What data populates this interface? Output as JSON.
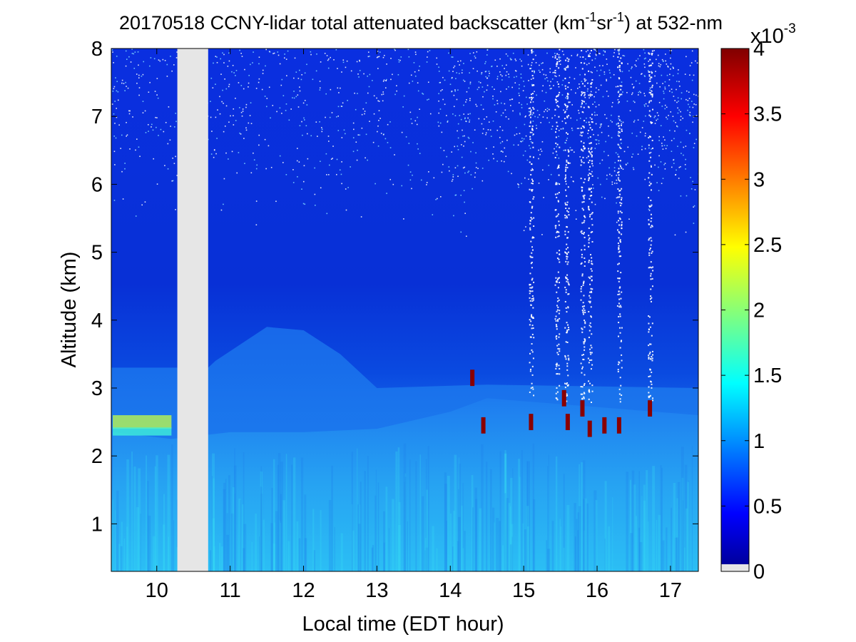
{
  "chart_data": {
    "type": "heatmap",
    "title": {
      "date": "20170518",
      "text_before_unit": "CCNY-lidar total attenuated backscatter (km",
      "sup1": "-1",
      "mid": "sr",
      "sup2": "-1",
      "text_after_unit": ") at 532-nm"
    },
    "xlabel": "Local time (EDT hour)",
    "ylabel": "Altitude (km)",
    "xlim": [
      9.38,
      17.38
    ],
    "ylim": [
      0.3,
      8.0
    ],
    "x_ticks": [
      10,
      11,
      12,
      13,
      14,
      15,
      16,
      17
    ],
    "y_ticks": [
      1,
      2,
      3,
      4,
      5,
      6,
      7,
      8
    ],
    "colorbar": {
      "colormap": "jet",
      "range": [
        0,
        4
      ],
      "ticks": [
        "0",
        "0.5",
        "1",
        "1.5",
        "2",
        "2.5",
        "3",
        "3.5",
        "4"
      ],
      "multiplier_base": "x10",
      "multiplier_exp": "-3",
      "no_data_color": "#e6e6e6"
    },
    "data_gap": {
      "start": 10.28,
      "end": 10.7,
      "color": "#e6e6e6"
    },
    "layers": [
      {
        "feature": "boundary layer top (rising)",
        "x": [
          9.4,
          10.2,
          11.0,
          12.0,
          13.0,
          14.0,
          14.5
        ],
        "altitude": [
          2.5,
          2.4,
          2.5,
          2.5,
          2.55,
          2.8,
          3.0
        ]
      },
      {
        "feature": "residual layer arc",
        "x": [
          10.8,
          11.5,
          12.0,
          12.5,
          13.0
        ],
        "altitude": [
          3.4,
          3.9,
          3.85,
          3.5,
          3.0
        ]
      },
      {
        "feature": "early aerosol layer",
        "x": [
          9.4,
          10.2
        ],
        "altitude": [
          2.5,
          2.5
        ],
        "value": 2.5
      }
    ],
    "clouds": [
      {
        "time": 14.3,
        "altitude": 3.15
      },
      {
        "time": 14.45,
        "altitude": 2.45
      },
      {
        "time": 15.1,
        "altitude": 2.5
      },
      {
        "time": 15.55,
        "altitude": 2.85
      },
      {
        "time": 15.6,
        "altitude": 2.5
      },
      {
        "time": 15.8,
        "altitude": 2.7
      },
      {
        "time": 15.9,
        "altitude": 2.4
      },
      {
        "time": 16.1,
        "altitude": 2.45
      },
      {
        "time": 16.3,
        "altitude": 2.45
      },
      {
        "time": 16.72,
        "altitude": 2.7
      }
    ],
    "attenuation_streaks": [
      15.1,
      15.45,
      15.58,
      15.8,
      15.9,
      16.3,
      16.72
    ]
  }
}
